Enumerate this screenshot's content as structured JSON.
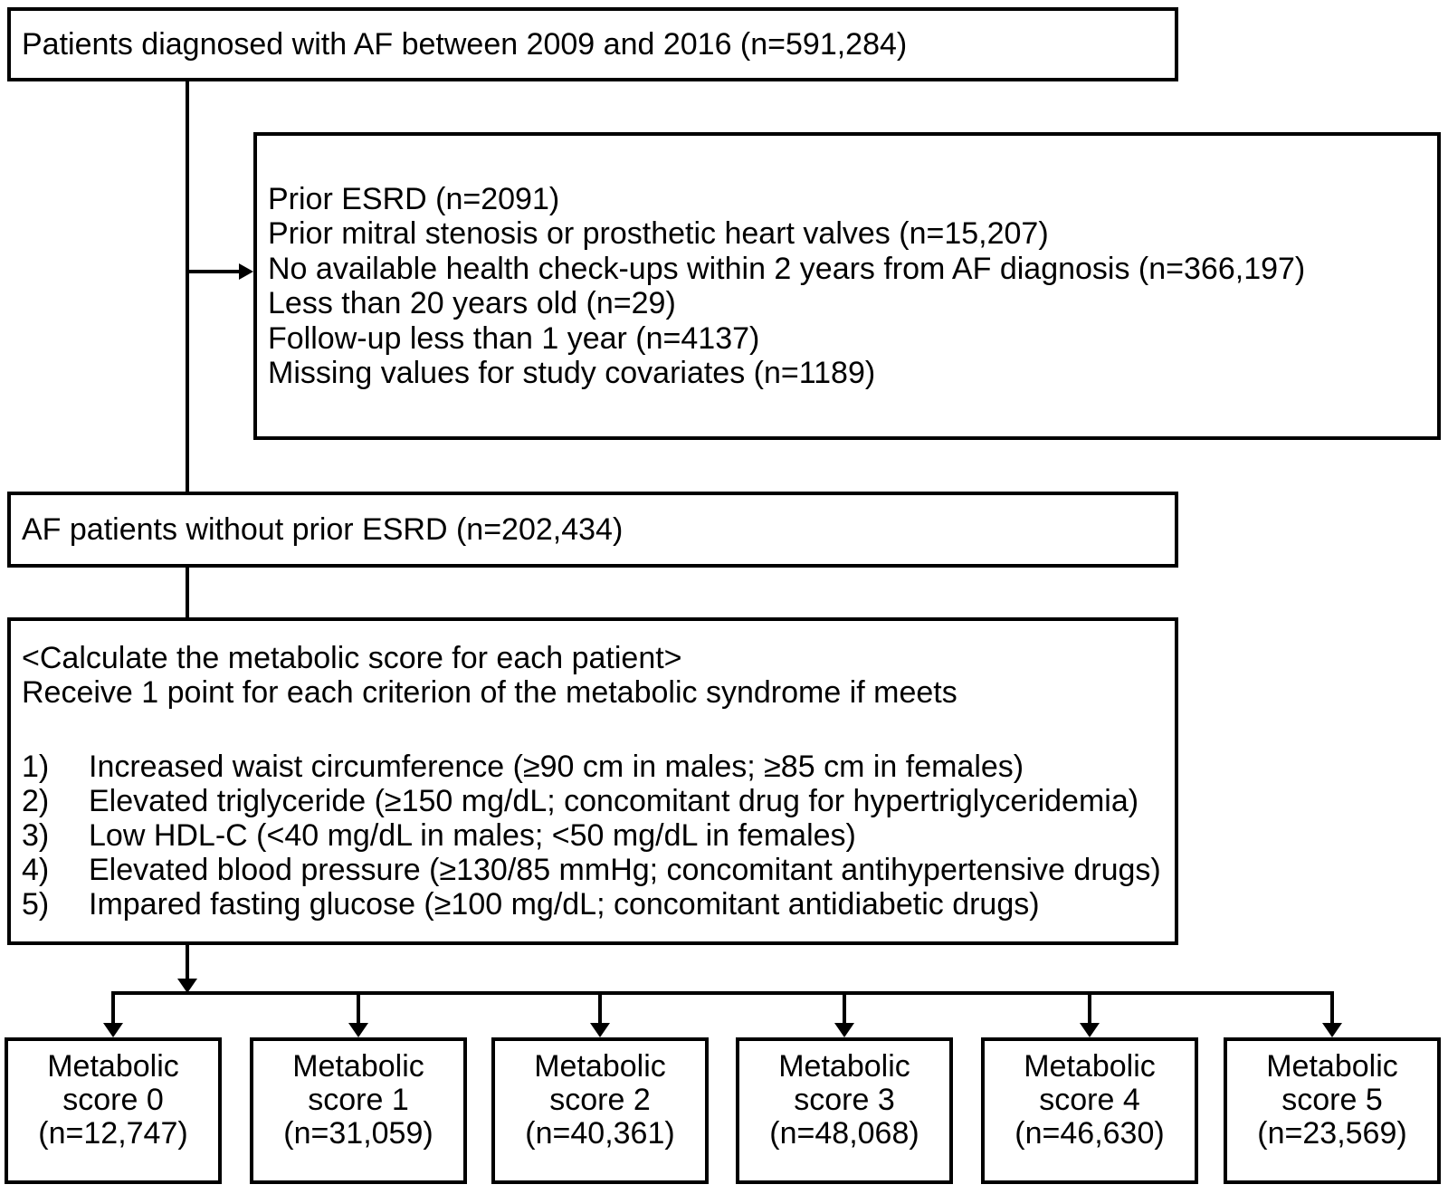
{
  "boxes": {
    "diagnosed": {
      "text": "Patients diagnosed with AF between 2009 and 2016 (n=591,284)"
    },
    "exclusions": {
      "lines": [
        "Prior ESRD (n=2091)",
        "Prior mitral stenosis or prosthetic heart valves (n=15,207)",
        "No available health check-ups within 2 years from AF diagnosis (n=366,197)",
        "Less than 20 years old (n=29)",
        "Follow-up less than 1 year (n=4137)",
        "Missing values for study covariates (n=1189)"
      ]
    },
    "af_without_esrd": {
      "text": "AF patients without prior ESRD (n=202,434)"
    },
    "calc": {
      "header_lines": [
        "<Calculate the metabolic score for each patient>",
        "Receive 1 point for each criterion of the metabolic syndrome if meets"
      ],
      "criteria": [
        {
          "num": "1)",
          "text": "Increased waist circumference (≥90 cm in males; ≥85 cm in females)"
        },
        {
          "num": "2)",
          "text": "Elevated triglyceride (≥150 mg/dL; concomitant drug for hypertriglyceridemia)"
        },
        {
          "num": "3)",
          "text": "Low HDL-C (<40 mg/dL in males; <50 mg/dL in females)"
        },
        {
          "num": "4)",
          "text": "Elevated blood pressure (≥130/85 mmHg; concomitant antihypertensive drugs)"
        },
        {
          "num": "5)",
          "text": "Impared fasting glucose (≥100 mg/dL; concomitant antidiabetic drugs)"
        }
      ]
    },
    "score_boxes": [
      {
        "lines": [
          "Metabolic",
          "score 0",
          "(n=12,747)"
        ]
      },
      {
        "lines": [
          "Metabolic",
          "score 1",
          "(n=31,059)"
        ]
      },
      {
        "lines": [
          "Metabolic",
          "score 2",
          "(n=40,361)"
        ]
      },
      {
        "lines": [
          "Metabolic",
          "score 3",
          "(n=48,068)"
        ]
      },
      {
        "lines": [
          "Metabolic",
          "score 4",
          "(n=46,630)"
        ]
      },
      {
        "lines": [
          "Metabolic",
          "score 5",
          "(n=23,569)"
        ]
      }
    ]
  },
  "colors": {
    "line": "#000000",
    "background": "#ffffff",
    "text": "#000000"
  }
}
